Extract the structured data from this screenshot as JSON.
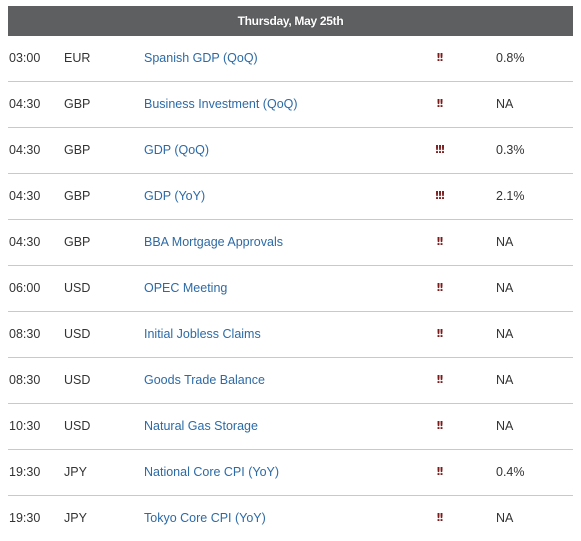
{
  "calendar": {
    "date_header": "Thursday, May 25th",
    "impact_color": "#7a1b1b",
    "link_color": "#2c6aa6",
    "rows": [
      {
        "time": "03:00",
        "currency": "EUR",
        "event": "Spanish GDP (QoQ)",
        "impact": "!!",
        "value": "0.8%"
      },
      {
        "time": "04:30",
        "currency": "GBP",
        "event": "Business Investment (QoQ)",
        "impact": "!!",
        "value": "NA"
      },
      {
        "time": "04:30",
        "currency": "GBP",
        "event": "GDP (QoQ)",
        "impact": "!!!",
        "value": "0.3%"
      },
      {
        "time": "04:30",
        "currency": "GBP",
        "event": "GDP (YoY)",
        "impact": "!!!",
        "value": "2.1%"
      },
      {
        "time": "04:30",
        "currency": "GBP",
        "event": "BBA Mortgage Approvals",
        "impact": "!!",
        "value": "NA"
      },
      {
        "time": "06:00",
        "currency": "USD",
        "event": "OPEC Meeting",
        "impact": "!!",
        "value": "NA"
      },
      {
        "time": "08:30",
        "currency": "USD",
        "event": "Initial Jobless Claims",
        "impact": "!!",
        "value": "NA"
      },
      {
        "time": "08:30",
        "currency": "USD",
        "event": "Goods Trade Balance",
        "impact": "!!",
        "value": "NA"
      },
      {
        "time": "10:30",
        "currency": "USD",
        "event": "Natural Gas Storage",
        "impact": "!!",
        "value": "NA"
      },
      {
        "time": "19:30",
        "currency": "JPY",
        "event": "National Core CPI (YoY)",
        "impact": "!!",
        "value": "0.4%"
      },
      {
        "time": "19:30",
        "currency": "JPY",
        "event": "Tokyo Core CPI (YoY)",
        "impact": "!!",
        "value": "NA"
      }
    ]
  }
}
